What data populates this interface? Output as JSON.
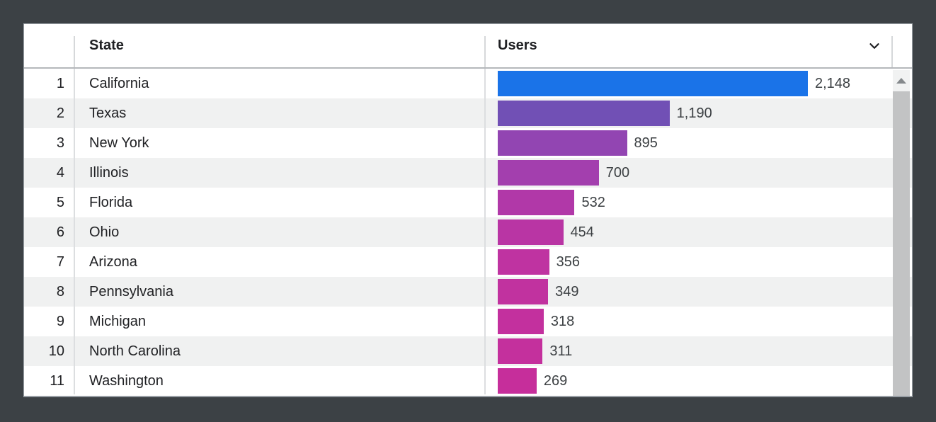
{
  "header": {
    "state_label": "State",
    "users_label": "Users",
    "sort_icon": "chevron-down-icon"
  },
  "chart_data": {
    "type": "bar",
    "orientation": "horizontal",
    "title": "Users by State table with horizontal bars",
    "columns": [
      "State",
      "Users"
    ],
    "ranks": [
      "1",
      "2",
      "3",
      "4",
      "5",
      "6",
      "7",
      "8",
      "9",
      "10",
      "11"
    ],
    "categories": [
      "California",
      "Texas",
      "New York",
      "Illinois",
      "Florida",
      "Ohio",
      "Arizona",
      "Pennsylvania",
      "Michigan",
      "North Carolina",
      "Washington"
    ],
    "values": [
      2148,
      1190,
      895,
      700,
      532,
      454,
      356,
      349,
      318,
      311,
      269
    ],
    "value_labels": [
      "2,148",
      "1,190",
      "895",
      "700",
      "532",
      "454",
      "356",
      "349",
      "318",
      "311",
      "269"
    ],
    "bar_colors": [
      "#1a73e8",
      "#7150b5",
      "#9245b2",
      "#a33fae",
      "#b138a8",
      "#b935a4",
      "#bf33a1",
      "#c1329f",
      "#c3309e",
      "#c4309d",
      "#c62e9b"
    ],
    "xlim": [
      0,
      2148
    ],
    "legend": "none",
    "grid": "off",
    "row_stripe_colors": [
      "#ffffff",
      "#f0f1f1"
    ],
    "accent_color": "#1a73e8",
    "background_color": "#3c4145"
  },
  "scrollbar": {
    "up_icon": "triangle-up-icon",
    "thumb": "scroll-thumb"
  }
}
